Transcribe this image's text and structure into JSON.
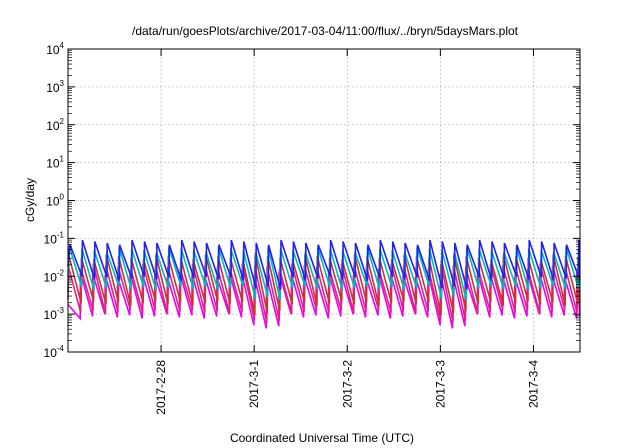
{
  "chart_data": {
    "type": "line",
    "title": "/data/run/goesPlots/archive/2017-03-04/11:00/flux/../bryn/5daysMars.plot",
    "xlabel": "Coordinated Universal Time (UTC)",
    "ylabel": "cGy/day",
    "y_scale": "log",
    "ylim": [
      0.0001,
      10000
    ],
    "y_ticks": [
      {
        "base": "10",
        "exp": "-4"
      },
      {
        "base": "10",
        "exp": "-3"
      },
      {
        "base": "10",
        "exp": "-2"
      },
      {
        "base": "10",
        "exp": "-1"
      },
      {
        "base": "10",
        "exp": "0"
      },
      {
        "base": "10",
        "exp": "1"
      },
      {
        "base": "10",
        "exp": "2"
      },
      {
        "base": "10",
        "exp": "3"
      },
      {
        "base": "10",
        "exp": "4"
      }
    ],
    "xlim": [
      "2017-02-27 00:00",
      "2017-03-04 12:00"
    ],
    "x_ticks": [
      "2017-2-28",
      "2017-3-1",
      "2017-3-2",
      "2017-3-3",
      "2017-3-4"
    ],
    "grid": true,
    "legend": "none",
    "series_colors": [
      "#ee00ee",
      "#dd2288",
      "#cc3333",
      "#00bbbb",
      "#2222ee"
    ],
    "series_levels": [
      {
        "min": 0.0009,
        "max": 0.012
      },
      {
        "min": 0.0012,
        "max": 0.02
      },
      {
        "min": 0.002,
        "max": 0.035
      },
      {
        "min": 0.005,
        "max": 0.055
      },
      {
        "min": 0.009,
        "max": 0.085
      }
    ],
    "sawtooth_period_hours": 3.2,
    "dip_days": [
      "2017-3-1",
      "2017-3-3"
    ]
  }
}
